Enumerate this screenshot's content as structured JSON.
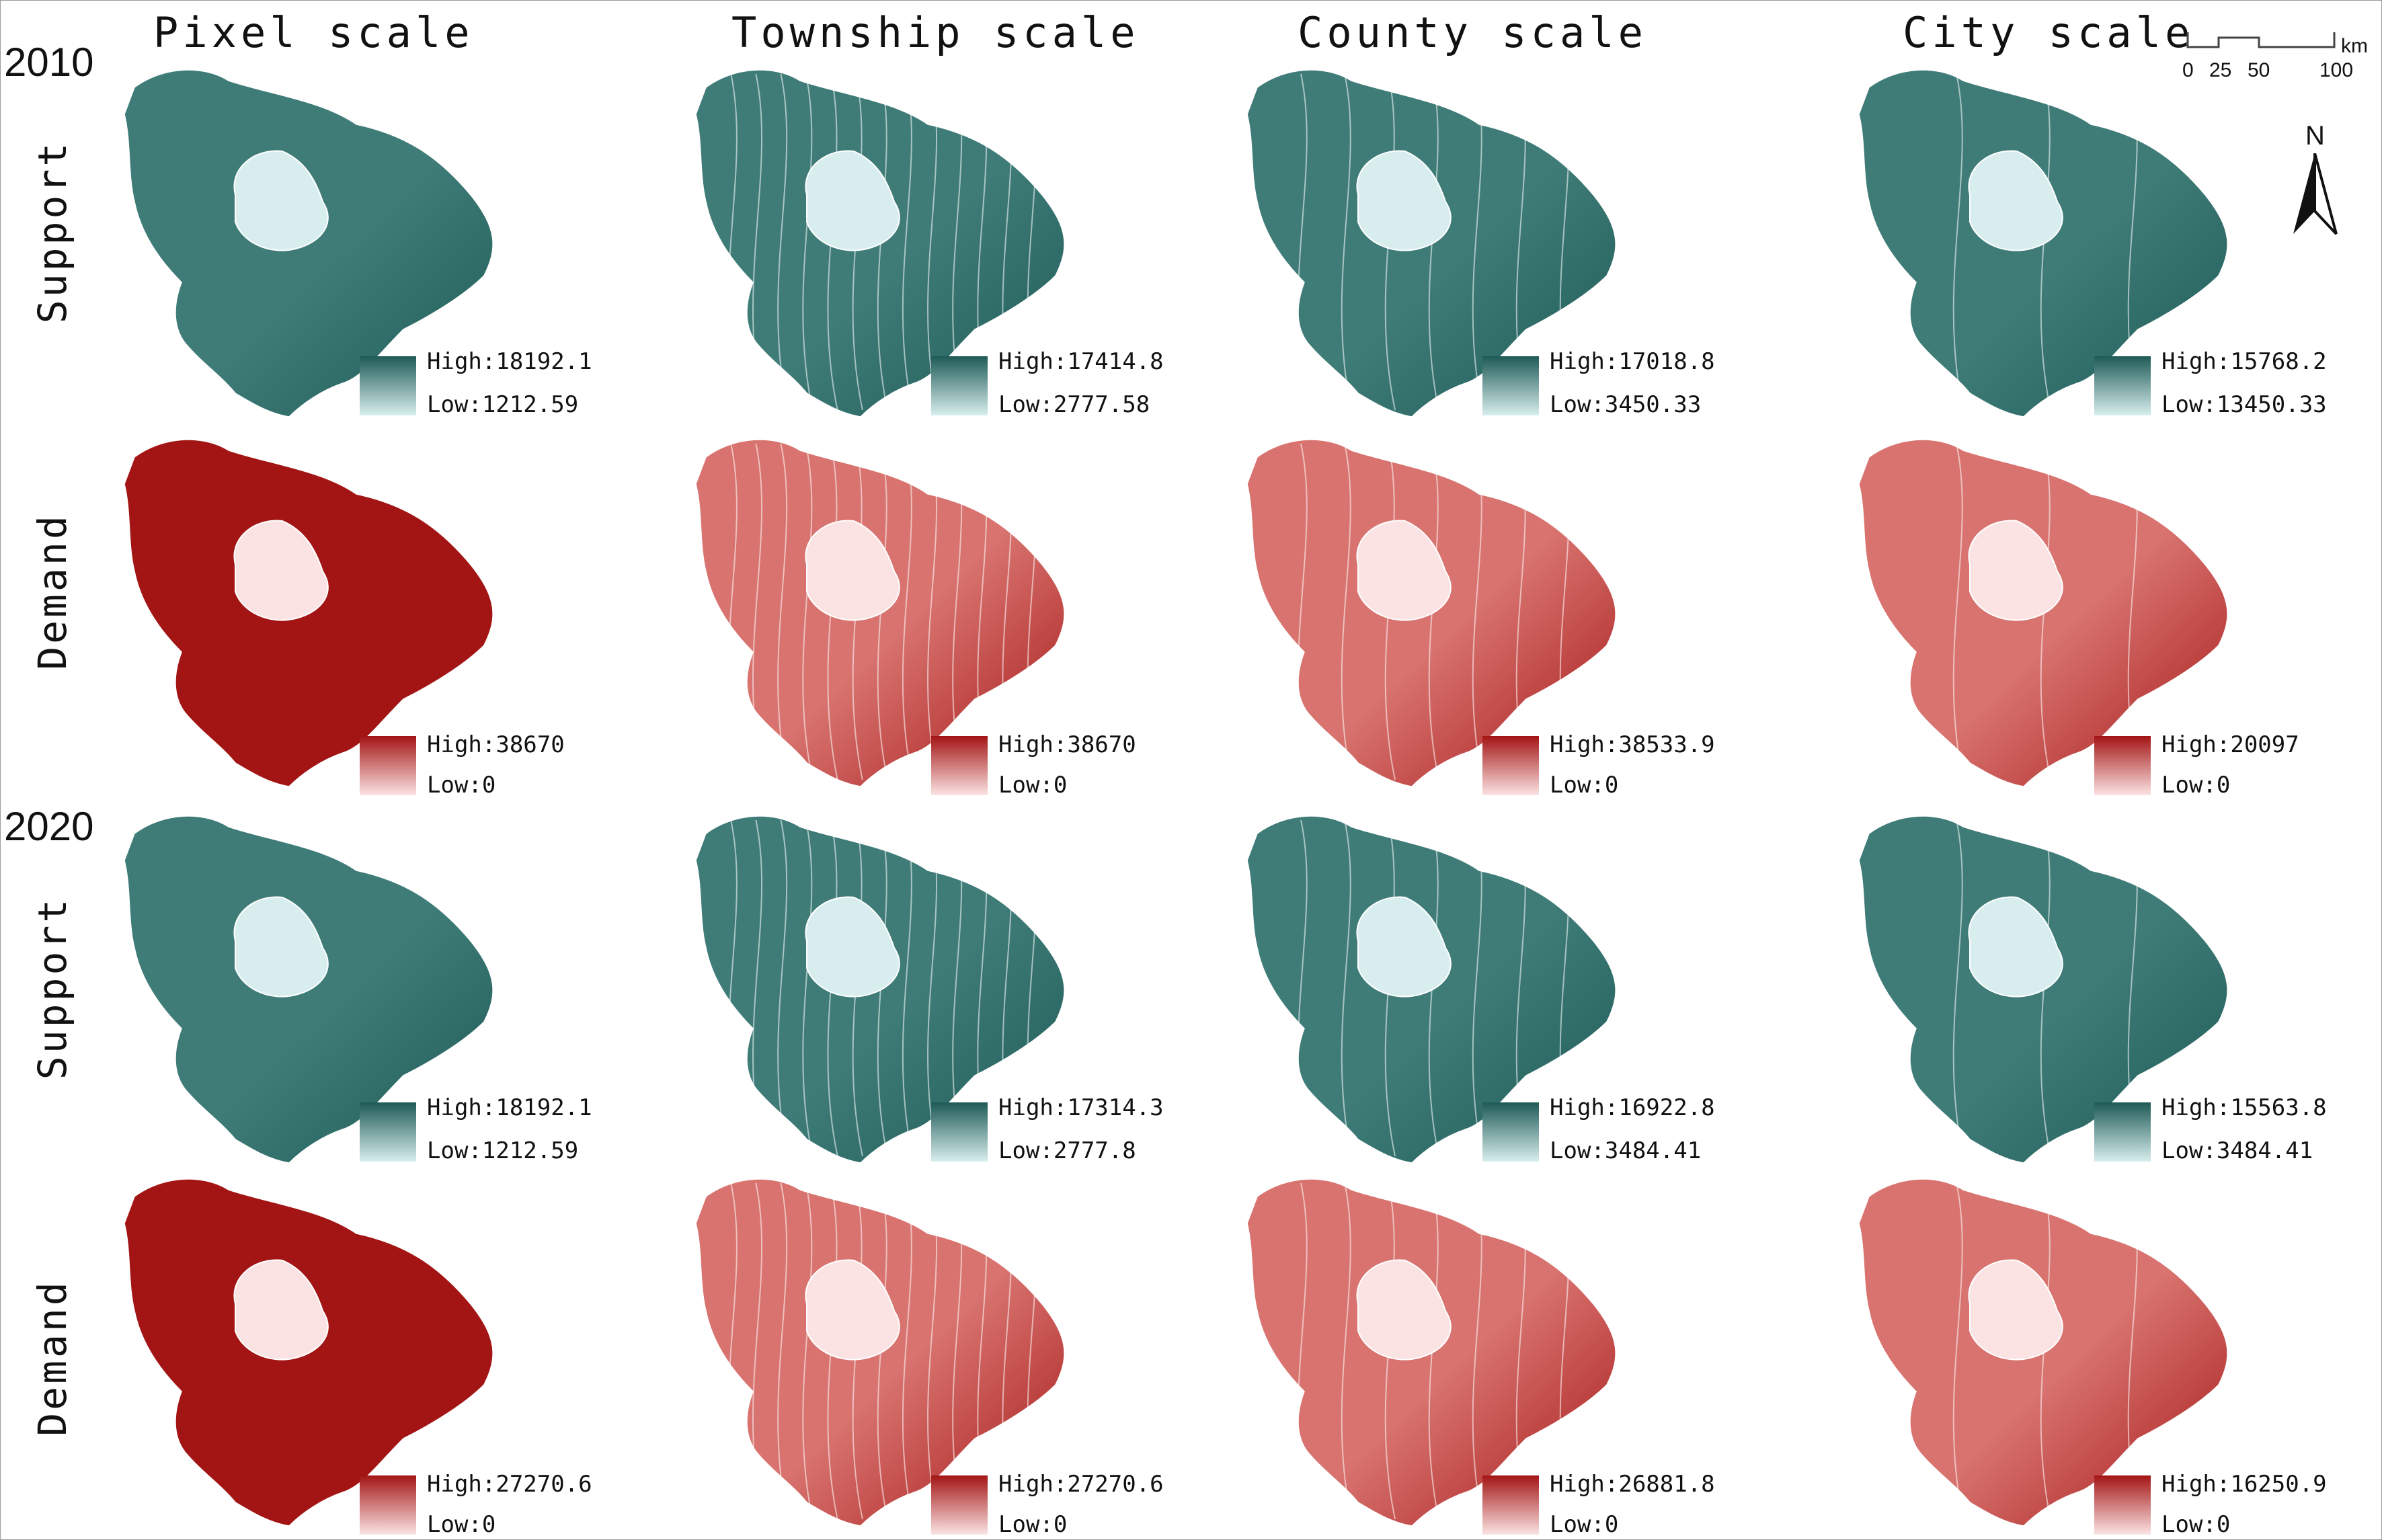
{
  "columns": [
    "Pixel scale",
    "Township scale",
    "County scale",
    "City scale"
  ],
  "years": [
    "2010",
    "2020"
  ],
  "row_labels": {
    "support": "Support",
    "demand": "Demand"
  },
  "colors": {
    "support_high": "#1e5a56",
    "support_mid": "#3f7c78",
    "support_low": "#d8eeee",
    "demand_high": "#a31515",
    "demand_mid": "#d8736f",
    "demand_low": "#fbe3e3",
    "boundary": "#ffffff"
  },
  "scale_bar": {
    "ticks": [
      "0",
      "25",
      "50",
      "100"
    ],
    "unit": "km"
  },
  "north_arrow": {
    "label": "N"
  },
  "panels": [
    {
      "id": "p2010-support-pixel",
      "year": "2010",
      "type": "support",
      "scale": "Pixel scale",
      "high": "High:18192.1",
      "low": "Low:1212.59"
    },
    {
      "id": "p2010-support-township",
      "year": "2010",
      "type": "support",
      "scale": "Township scale",
      "high": "High:17414.8",
      "low": "Low:2777.58"
    },
    {
      "id": "p2010-support-county",
      "year": "2010",
      "type": "support",
      "scale": "County scale",
      "high": "High:17018.8",
      "low": "Low:3450.33"
    },
    {
      "id": "p2010-support-city",
      "year": "2010",
      "type": "support",
      "scale": "City scale",
      "high": "High:15768.2",
      "low": "Low:13450.33"
    },
    {
      "id": "p2010-demand-pixel",
      "year": "2010",
      "type": "demand",
      "scale": "Pixel scale",
      "high": "High:38670",
      "low": "Low:0"
    },
    {
      "id": "p2010-demand-township",
      "year": "2010",
      "type": "demand",
      "scale": "Township scale",
      "high": "High:38670",
      "low": "Low:0"
    },
    {
      "id": "p2010-demand-county",
      "year": "2010",
      "type": "demand",
      "scale": "County scale",
      "high": "High:38533.9",
      "low": "Low:0"
    },
    {
      "id": "p2010-demand-city",
      "year": "2010",
      "type": "demand",
      "scale": "City scale",
      "high": "High:20097",
      "low": "Low:0"
    },
    {
      "id": "p2020-support-pixel",
      "year": "2020",
      "type": "support",
      "scale": "Pixel scale",
      "high": "High:18192.1",
      "low": "Low:1212.59"
    },
    {
      "id": "p2020-support-township",
      "year": "2020",
      "type": "support",
      "scale": "Township scale",
      "high": "High:17314.3",
      "low": "Low:2777.8"
    },
    {
      "id": "p2020-support-county",
      "year": "2020",
      "type": "support",
      "scale": "County scale",
      "high": "High:16922.8",
      "low": "Low:3484.41"
    },
    {
      "id": "p2020-support-city",
      "year": "2020",
      "type": "support",
      "scale": "City scale",
      "high": "High:15563.8",
      "low": "Low:3484.41"
    },
    {
      "id": "p2020-demand-pixel",
      "year": "2020",
      "type": "demand",
      "scale": "Pixel scale",
      "high": "High:27270.6",
      "low": "Low:0"
    },
    {
      "id": "p2020-demand-township",
      "year": "2020",
      "type": "demand",
      "scale": "Township scale",
      "high": "High:27270.6",
      "low": "Low:0"
    },
    {
      "id": "p2020-demand-county",
      "year": "2020",
      "type": "demand",
      "scale": "County scale",
      "high": "High:26881.8",
      "low": "Low:0"
    },
    {
      "id": "p2020-demand-city",
      "year": "2020",
      "type": "demand",
      "scale": "City scale",
      "high": "High:16250.9",
      "low": "Low:0"
    }
  ]
}
